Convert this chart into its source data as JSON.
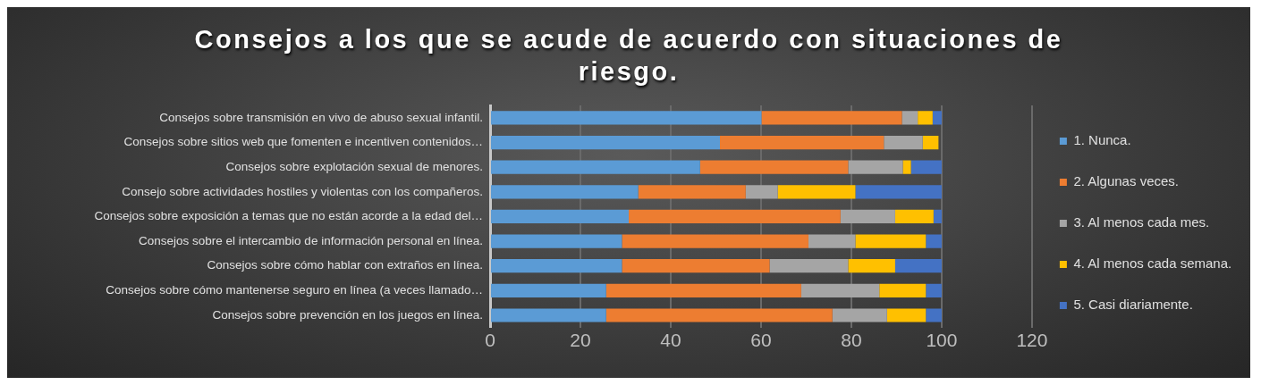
{
  "chart_data": {
    "type": "bar",
    "title": "Consejos a los que se acude de acuerdo con situaciones de riesgo.",
    "orientation": "horizontal",
    "stacked": true,
    "legend": "right",
    "grid": "x",
    "categories": [
      "Consejos sobre transmisión en vivo de abuso sexual infantil.",
      "Consejos sobre sitios web que fomenten e incentiven contenidos…",
      "Consejos sobre explotación sexual de menores.",
      "Consejo sobre actividades hostiles y violentas con los compañeros.",
      "Consejos sobre exposición a temas que no están acorde a la edad del…",
      "Consejos sobre el intercambio de información personal en línea.",
      "Consejos sobre cómo hablar con extraños en línea.",
      "Consejos sobre cómo mantenerse seguro en línea (a veces llamado…",
      "Consejos sobre prevención en los juegos en línea."
    ],
    "xlim": [
      0,
      120
    ],
    "xticks": [
      0,
      20,
      40,
      60,
      80,
      100,
      120
    ],
    "series": [
      {
        "name": "1. Nunca.",
        "color": "#5b9bd5",
        "values": [
          60.1,
          50.9,
          46.5,
          32.8,
          30.7,
          29.2,
          29.2,
          25.7,
          25.7
        ]
      },
      {
        "name": "2. Algunas veces.",
        "color": "#ed7d31",
        "values": [
          31.1,
          36.3,
          32.8,
          23.8,
          46.9,
          41.3,
          32.7,
          43.2,
          50.1
        ]
      },
      {
        "name": "3. Al menos cada mes.",
        "color": "#a5a5a5",
        "values": [
          3.5,
          8.6,
          12.1,
          7.1,
          12.1,
          10.4,
          17.4,
          17.3,
          12.1
        ]
      },
      {
        "name": "4. Al menos cada semana.",
        "color": "#ffc000",
        "values": [
          3.3,
          3.5,
          1.8,
          17.2,
          8.5,
          15.6,
          10.4,
          10.3,
          8.6
        ]
      },
      {
        "name": "5. Casi diariamente.",
        "color": "#4472c4",
        "values": [
          2.0,
          0,
          6.8,
          19.1,
          1.8,
          3.5,
          10.3,
          3.5,
          3.5
        ]
      }
    ]
  }
}
